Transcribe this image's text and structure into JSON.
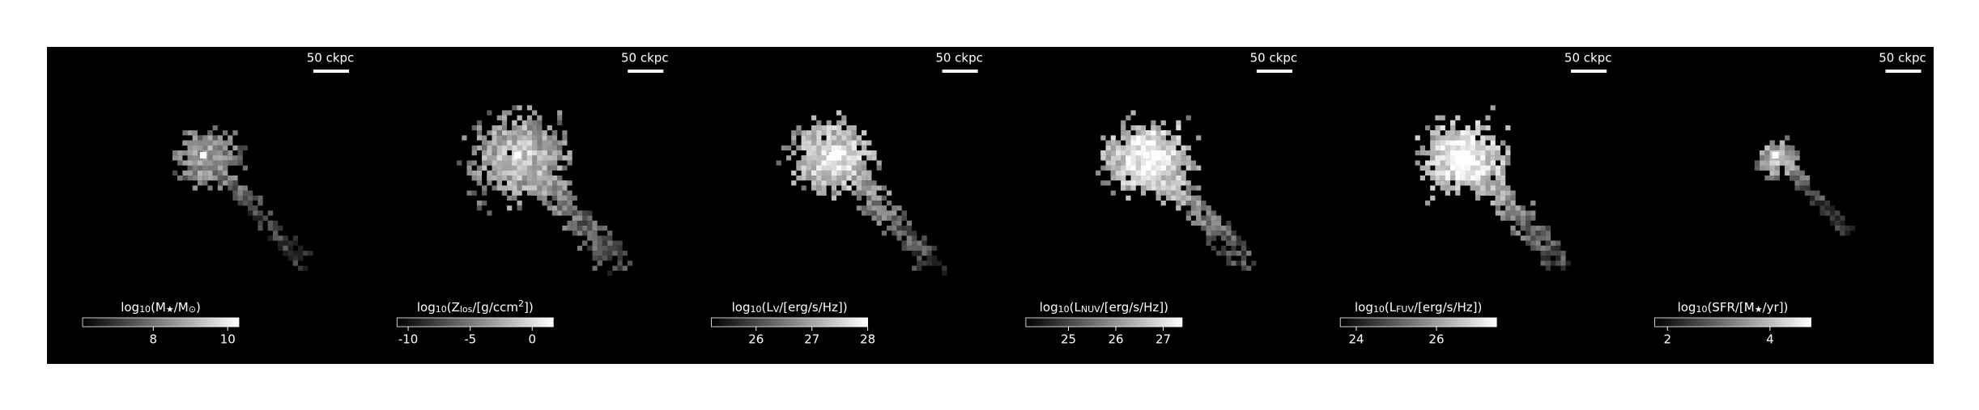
{
  "panels": [
    {
      "scale_bar": "50 ckpc",
      "colorbar": {
        "label": [
          {
            "text": "log"
          },
          {
            "text": "10",
            "shift": "sub"
          },
          {
            "text": "(M"
          },
          {
            "text": "★",
            "shift": "sub"
          },
          {
            "text": "/M"
          },
          {
            "text": "⊙",
            "shift": "sub"
          },
          {
            "text": ")"
          }
        ],
        "clim": [
          6.1,
          10.3
        ],
        "ticks": [
          8,
          10
        ]
      }
    },
    {
      "scale_bar": "50 ckpc",
      "colorbar": {
        "label": [
          {
            "text": "log"
          },
          {
            "text": "10",
            "shift": "sub"
          },
          {
            "text": "(Z"
          },
          {
            "text": "los",
            "shift": "sub"
          },
          {
            "text": "/[g/ccm"
          },
          {
            "text": "2",
            "shift": "sup"
          },
          {
            "text": "])"
          }
        ],
        "clim": [
          -10.9,
          1.7
        ],
        "ticks": [
          -10,
          -5,
          0
        ]
      }
    },
    {
      "scale_bar": "50 ckpc",
      "colorbar": {
        "label": [
          {
            "text": "log"
          },
          {
            "text": "10",
            "shift": "sub"
          },
          {
            "text": "(L"
          },
          {
            "text": "V",
            "shift": "sub"
          },
          {
            "text": "/[erg/s/Hz])"
          }
        ],
        "clim": [
          25.2,
          28.0
        ],
        "ticks": [
          26,
          27,
          28
        ]
      }
    },
    {
      "scale_bar": "50 ckpc",
      "colorbar": {
        "label": [
          {
            "text": "log"
          },
          {
            "text": "10",
            "shift": "sub"
          },
          {
            "text": "(L"
          },
          {
            "text": "NUV",
            "shift": "sub"
          },
          {
            "text": "/[erg/s/Hz])"
          }
        ],
        "clim": [
          24.1,
          27.4
        ],
        "ticks": [
          25,
          26,
          27
        ]
      }
    },
    {
      "scale_bar": "50 ckpc",
      "colorbar": {
        "label": [
          {
            "text": "log"
          },
          {
            "text": "10",
            "shift": "sub"
          },
          {
            "text": "(L"
          },
          {
            "text": "FUV",
            "shift": "sub"
          },
          {
            "text": "/[erg/s/Hz])"
          }
        ],
        "clim": [
          23.6,
          27.5
        ],
        "ticks": [
          24,
          26
        ]
      }
    },
    {
      "scale_bar": "50 ckpc",
      "colorbar": {
        "label": [
          {
            "text": "log"
          },
          {
            "text": "10",
            "shift": "sub"
          },
          {
            "text": "(SFR/[M"
          },
          {
            "text": "★",
            "shift": "sub"
          },
          {
            "text": "/yr])"
          }
        ],
        "clim": [
          1.75,
          4.8
        ],
        "ticks": [
          2,
          4
        ]
      }
    }
  ]
}
